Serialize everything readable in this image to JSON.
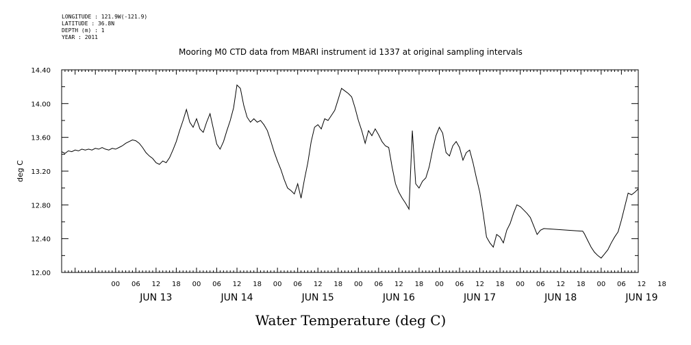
{
  "header": {
    "lines": [
      "LONGITUDE : 121.9W(-121.9)",
      "LATITUDE : 36.8N",
      "DEPTH (m) : 1",
      "YEAR : 2011"
    ]
  },
  "chart_data": {
    "type": "line",
    "title": "Mooring M0 CTD data from MBARI instrument id 1337 at original sampling intervals",
    "xlabel": "Water Temperature (deg C)",
    "ylabel": "deg C",
    "ylim": [
      12.0,
      14.4
    ],
    "yticks": [
      "12.00",
      "12.40",
      "12.80",
      "13.20",
      "13.60",
      "14.00",
      "14.40"
    ],
    "x_units": "hours since JUN 13 00",
    "xlim": [
      -16,
      155
    ],
    "hour_ticks": [
      "00",
      "06",
      "12",
      "18",
      "00",
      "06",
      "12",
      "18",
      "00",
      "06",
      "12",
      "18",
      "00",
      "06",
      "12",
      "18",
      "00",
      "06",
      "12",
      "18",
      "00",
      "06",
      "12",
      "18",
      "00",
      "06",
      "12",
      "18"
    ],
    "day_labels": [
      "JUN 13",
      "JUN 14",
      "JUN 15",
      "JUN 16",
      "JUN 17",
      "JUN 18",
      "JUN 19"
    ],
    "grid": false,
    "series": [
      {
        "values": [
          [
            -16,
            13.43
          ],
          [
            -15,
            13.41
          ],
          [
            -14,
            13.44
          ],
          [
            -13,
            13.43
          ],
          [
            -12,
            13.45
          ],
          [
            -11,
            13.44
          ],
          [
            -10,
            13.46
          ],
          [
            -9,
            13.45
          ],
          [
            -8,
            13.46
          ],
          [
            -7,
            13.45
          ],
          [
            -6,
            13.47
          ],
          [
            -5,
            13.46
          ],
          [
            -4,
            13.48
          ],
          [
            -3,
            13.46
          ],
          [
            -2,
            13.45
          ],
          [
            -1,
            13.47
          ],
          [
            0,
            13.46
          ],
          [
            1,
            13.48
          ],
          [
            2,
            13.5
          ],
          [
            3,
            13.53
          ],
          [
            4,
            13.55
          ],
          [
            5,
            13.57
          ],
          [
            6,
            13.56
          ],
          [
            7,
            13.53
          ],
          [
            8,
            13.48
          ],
          [
            9,
            13.42
          ],
          [
            10,
            13.38
          ],
          [
            11,
            13.35
          ],
          [
            12,
            13.3
          ],
          [
            13,
            13.28
          ],
          [
            14,
            13.32
          ],
          [
            15,
            13.3
          ],
          [
            16,
            13.36
          ],
          [
            17,
            13.45
          ],
          [
            18,
            13.55
          ],
          [
            19,
            13.68
          ],
          [
            20,
            13.8
          ],
          [
            21,
            13.93
          ],
          [
            22,
            13.78
          ],
          [
            23,
            13.72
          ],
          [
            24,
            13.82
          ],
          [
            25,
            13.7
          ],
          [
            26,
            13.66
          ],
          [
            27,
            13.78
          ],
          [
            28,
            13.88
          ],
          [
            29,
            13.7
          ],
          [
            30,
            13.52
          ],
          [
            31,
            13.46
          ],
          [
            32,
            13.55
          ],
          [
            33,
            13.68
          ],
          [
            34,
            13.8
          ],
          [
            35,
            13.95
          ],
          [
            36,
            14.22
          ],
          [
            37,
            14.18
          ],
          [
            38,
            13.98
          ],
          [
            39,
            13.84
          ],
          [
            40,
            13.78
          ],
          [
            41,
            13.82
          ],
          [
            42,
            13.78
          ],
          [
            43,
            13.8
          ],
          [
            44,
            13.75
          ],
          [
            45,
            13.68
          ],
          [
            46,
            13.56
          ],
          [
            47,
            13.43
          ],
          [
            48,
            13.32
          ],
          [
            49,
            13.22
          ],
          [
            50,
            13.1
          ],
          [
            51,
            13.0
          ],
          [
            52,
            12.97
          ],
          [
            53,
            12.93
          ],
          [
            54,
            13.05
          ],
          [
            55,
            12.88
          ],
          [
            56,
            13.1
          ],
          [
            57,
            13.3
          ],
          [
            58,
            13.55
          ],
          [
            59,
            13.72
          ],
          [
            60,
            13.75
          ],
          [
            61,
            13.7
          ],
          [
            62,
            13.82
          ],
          [
            63,
            13.8
          ],
          [
            64,
            13.86
          ],
          [
            65,
            13.92
          ],
          [
            66,
            14.05
          ],
          [
            67,
            14.18
          ],
          [
            68,
            14.15
          ],
          [
            69,
            14.12
          ],
          [
            70,
            14.08
          ],
          [
            71,
            13.95
          ],
          [
            72,
            13.8
          ],
          [
            73,
            13.68
          ],
          [
            74,
            13.53
          ],
          [
            75,
            13.68
          ],
          [
            76,
            13.62
          ],
          [
            77,
            13.7
          ],
          [
            78,
            13.63
          ],
          [
            79,
            13.55
          ],
          [
            80,
            13.5
          ],
          [
            81,
            13.48
          ],
          [
            82,
            13.25
          ],
          [
            83,
            13.05
          ],
          [
            84,
            12.95
          ],
          [
            85,
            12.88
          ],
          [
            86,
            12.82
          ],
          [
            87,
            12.75
          ],
          [
            88,
            13.68
          ],
          [
            89,
            13.05
          ],
          [
            90,
            13.0
          ],
          [
            91,
            13.08
          ],
          [
            92,
            13.12
          ],
          [
            93,
            13.25
          ],
          [
            94,
            13.45
          ],
          [
            95,
            13.62
          ],
          [
            96,
            13.72
          ],
          [
            97,
            13.65
          ],
          [
            98,
            13.42
          ],
          [
            99,
            13.38
          ],
          [
            100,
            13.5
          ],
          [
            101,
            13.55
          ],
          [
            102,
            13.48
          ],
          [
            103,
            13.33
          ],
          [
            104,
            13.42
          ],
          [
            105,
            13.45
          ],
          [
            106,
            13.3
          ],
          [
            107,
            13.12
          ],
          [
            108,
            12.95
          ],
          [
            109,
            12.7
          ],
          [
            110,
            12.42
          ],
          [
            111,
            12.35
          ],
          [
            112,
            12.3
          ],
          [
            113,
            12.45
          ],
          [
            114,
            12.42
          ],
          [
            115,
            12.35
          ],
          [
            116,
            12.5
          ],
          [
            117,
            12.58
          ],
          [
            118,
            12.7
          ],
          [
            119,
            12.8
          ],
          [
            120,
            12.78
          ],
          [
            121,
            12.74
          ],
          [
            122,
            12.7
          ],
          [
            123,
            12.65
          ],
          [
            124,
            12.55
          ],
          [
            125,
            12.45
          ],
          [
            126,
            12.5
          ],
          [
            127,
            12.52
          ],
          [
            138,
            12.49
          ],
          [
            138.5,
            12.49
          ],
          [
            139,
            12.46
          ],
          [
            140,
            12.38
          ],
          [
            141,
            12.3
          ],
          [
            142,
            12.24
          ],
          [
            143,
            12.2
          ],
          [
            144,
            12.17
          ],
          [
            145,
            12.22
          ],
          [
            146,
            12.27
          ],
          [
            147,
            12.35
          ],
          [
            148,
            12.42
          ],
          [
            149,
            12.48
          ],
          [
            150,
            12.62
          ],
          [
            151,
            12.78
          ],
          [
            152,
            12.94
          ],
          [
            153,
            12.92
          ],
          [
            154,
            12.95
          ],
          [
            155,
            12.99
          ]
        ]
      }
    ]
  }
}
